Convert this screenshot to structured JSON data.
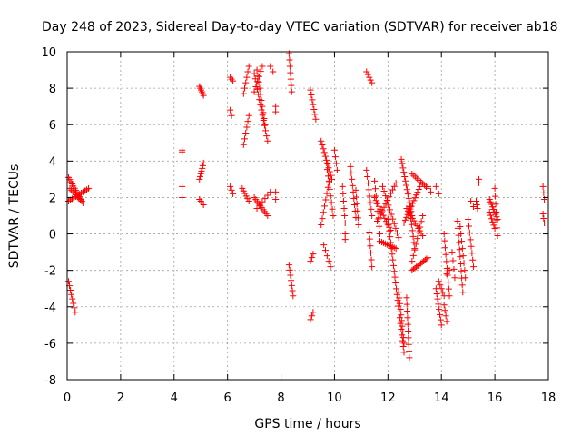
{
  "chart_data": {
    "type": "scatter",
    "title": "Day 248 of 2023, Sidereal Day-to-day VTEC variation (SDTVAR) for receiver ab18",
    "xlabel": "GPS time / hours",
    "ylabel": "SDTVAR / TECUs",
    "xlim": [
      0,
      18
    ],
    "ylim": [
      -8,
      10
    ],
    "xticks": [
      0,
      2,
      4,
      6,
      8,
      10,
      12,
      14,
      16,
      18
    ],
    "yticks": [
      -8,
      -6,
      -4,
      -2,
      0,
      2,
      4,
      6,
      8,
      10
    ],
    "grid": true,
    "marker": "+",
    "color": "#ff0000",
    "series": [
      {
        "name": "SDTVAR",
        "segments": [
          {
            "x0": 0.05,
            "y0": 3.1,
            "x1": 0.55,
            "y1": 1.8,
            "n": 12
          },
          {
            "x0": 0.05,
            "y0": 1.8,
            "x1": 0.8,
            "y1": 2.5,
            "n": 12
          },
          {
            "x0": 0.1,
            "y0": 2.5,
            "x1": 0.6,
            "y1": 1.7,
            "n": 10
          },
          {
            "x0": 0.05,
            "y0": -2.6,
            "x1": 0.3,
            "y1": -4.3,
            "n": 8
          },
          {
            "x0": 4.3,
            "y0": 4.6,
            "x1": 4.3,
            "y1": 4.5,
            "n": 2
          },
          {
            "x0": 4.3,
            "y0": 2.6,
            "x1": 4.3,
            "y1": 2.0,
            "n": 2
          },
          {
            "x0": 4.95,
            "y0": 8.1,
            "x1": 5.1,
            "y1": 7.6,
            "n": 6
          },
          {
            "x0": 4.95,
            "y0": 3.0,
            "x1": 5.1,
            "y1": 3.9,
            "n": 7
          },
          {
            "x0": 4.95,
            "y0": 1.9,
            "x1": 5.1,
            "y1": 1.6,
            "n": 4
          },
          {
            "x0": 6.1,
            "y0": 8.6,
            "x1": 6.2,
            "y1": 8.4,
            "n": 3
          },
          {
            "x0": 6.1,
            "y0": 6.8,
            "x1": 6.15,
            "y1": 6.5,
            "n": 2
          },
          {
            "x0": 6.1,
            "y0": 2.6,
            "x1": 6.2,
            "y1": 2.2,
            "n": 3
          },
          {
            "x0": 6.6,
            "y0": 4.9,
            "x1": 6.8,
            "y1": 6.5,
            "n": 6
          },
          {
            "x0": 6.6,
            "y0": 7.7,
            "x1": 6.8,
            "y1": 9.2,
            "n": 6
          },
          {
            "x0": 6.55,
            "y0": 2.5,
            "x1": 6.8,
            "y1": 1.8,
            "n": 6
          },
          {
            "x0": 7.0,
            "y0": 8.8,
            "x1": 7.5,
            "y1": 5.1,
            "n": 14
          },
          {
            "x0": 7.1,
            "y0": 9.0,
            "x1": 7.4,
            "y1": 6.0,
            "n": 10
          },
          {
            "x0": 7.0,
            "y0": 7.8,
            "x1": 7.3,
            "y1": 9.2,
            "n": 6
          },
          {
            "x0": 7.0,
            "y0": 2.0,
            "x1": 7.5,
            "y1": 1.0,
            "n": 10
          },
          {
            "x0": 7.1,
            "y0": 1.4,
            "x1": 7.6,
            "y1": 2.3,
            "n": 6
          },
          {
            "x0": 7.6,
            "y0": 9.2,
            "x1": 7.7,
            "y1": 8.9,
            "n": 2
          },
          {
            "x0": 7.8,
            "y0": 7.0,
            "x1": 7.8,
            "y1": 6.7,
            "n": 2
          },
          {
            "x0": 7.8,
            "y0": 2.3,
            "x1": 7.8,
            "y1": 1.9,
            "n": 2
          },
          {
            "x0": 8.3,
            "y0": 9.9,
            "x1": 8.4,
            "y1": 7.8,
            "n": 7
          },
          {
            "x0": 8.3,
            "y0": -1.7,
            "x1": 8.45,
            "y1": -3.4,
            "n": 7
          },
          {
            "x0": 9.1,
            "y0": 7.9,
            "x1": 9.3,
            "y1": 6.3,
            "n": 7
          },
          {
            "x0": 9.1,
            "y0": -1.5,
            "x1": 9.2,
            "y1": -1.1,
            "n": 3
          },
          {
            "x0": 9.1,
            "y0": -4.7,
            "x1": 9.2,
            "y1": -4.3,
            "n": 3
          },
          {
            "x0": 9.5,
            "y0": 5.1,
            "x1": 9.9,
            "y1": 3.0,
            "n": 11
          },
          {
            "x0": 9.5,
            "y0": 0.5,
            "x1": 9.8,
            "y1": 2.9,
            "n": 8
          },
          {
            "x0": 9.6,
            "y0": -0.6,
            "x1": 9.85,
            "y1": -1.8,
            "n": 5
          },
          {
            "x0": 9.7,
            "y0": 3.9,
            "x1": 9.95,
            "y1": 1.0,
            "n": 9
          },
          {
            "x0": 10.0,
            "y0": 4.6,
            "x1": 10.1,
            "y1": 3.5,
            "n": 4
          },
          {
            "x0": 10.3,
            "y0": 2.6,
            "x1": 10.4,
            "y1": 0.6,
            "n": 6
          },
          {
            "x0": 10.4,
            "y0": 0.0,
            "x1": 10.4,
            "y1": -0.3,
            "n": 2
          },
          {
            "x0": 10.6,
            "y0": 3.7,
            "x1": 10.8,
            "y1": 0.9,
            "n": 9
          },
          {
            "x0": 10.8,
            "y0": 2.4,
            "x1": 10.9,
            "y1": 0.5,
            "n": 6
          },
          {
            "x0": 11.2,
            "y0": 8.9,
            "x1": 11.4,
            "y1": 8.3,
            "n": 5
          },
          {
            "x0": 11.2,
            "y0": 3.5,
            "x1": 11.4,
            "y1": 1.0,
            "n": 8
          },
          {
            "x0": 11.3,
            "y0": 0.1,
            "x1": 11.4,
            "y1": -1.8,
            "n": 6
          },
          {
            "x0": 11.5,
            "y0": 2.9,
            "x1": 11.7,
            "y1": 0.0,
            "n": 8
          },
          {
            "x0": 11.5,
            "y0": 2.0,
            "x1": 12.1,
            "y1": 0.2,
            "n": 12
          },
          {
            "x0": 11.6,
            "y0": 0.7,
            "x1": 12.3,
            "y1": 2.8,
            "n": 12
          },
          {
            "x0": 11.8,
            "y0": 2.6,
            "x1": 12.4,
            "y1": -0.2,
            "n": 12
          },
          {
            "x0": 11.7,
            "y0": -0.4,
            "x1": 12.3,
            "y1": -0.8,
            "n": 10
          },
          {
            "x0": 12.0,
            "y0": 0.8,
            "x1": 12.6,
            "y1": -6.5,
            "n": 24
          },
          {
            "x0": 12.4,
            "y0": -3.2,
            "x1": 12.6,
            "y1": -6.0,
            "n": 10
          },
          {
            "x0": 12.5,
            "y0": 4.1,
            "x1": 12.9,
            "y1": 1.0,
            "n": 14
          },
          {
            "x0": 12.6,
            "y0": 0.6,
            "x1": 13.2,
            "y1": 2.6,
            "n": 14
          },
          {
            "x0": 12.7,
            "y0": 1.4,
            "x1": 13.3,
            "y1": -0.1,
            "n": 12
          },
          {
            "x0": 12.9,
            "y0": 3.3,
            "x1": 13.5,
            "y1": 2.5,
            "n": 10
          },
          {
            "x0": 12.8,
            "y0": 1.5,
            "x1": 13.0,
            "y1": -0.8,
            "n": 8
          },
          {
            "x0": 12.9,
            "y0": -2.0,
            "x1": 13.5,
            "y1": -1.3,
            "n": 12
          },
          {
            "x0": 12.9,
            "y0": -1.5,
            "x1": 13.3,
            "y1": 1.0,
            "n": 9
          },
          {
            "x0": 12.7,
            "y0": -3.5,
            "x1": 12.8,
            "y1": -6.8,
            "n": 10
          },
          {
            "x0": 13.5,
            "y0": 2.6,
            "x1": 13.6,
            "y1": 2.3,
            "n": 2
          },
          {
            "x0": 13.8,
            "y0": 2.6,
            "x1": 13.9,
            "y1": 2.2,
            "n": 2
          },
          {
            "x0": 13.8,
            "y0": -3.0,
            "x1": 14.0,
            "y1": -5.0,
            "n": 8
          },
          {
            "x0": 13.9,
            "y0": -2.6,
            "x1": 14.1,
            "y1": -3.4,
            "n": 5
          },
          {
            "x0": 14.1,
            "y0": -3.9,
            "x1": 14.2,
            "y1": -4.8,
            "n": 4
          },
          {
            "x0": 14.1,
            "y0": 0.0,
            "x1": 14.3,
            "y1": -3.4,
            "n": 10
          },
          {
            "x0": 14.2,
            "y0": -2.2,
            "x1": 14.3,
            "y1": -2.0,
            "n": 2
          },
          {
            "x0": 14.4,
            "y0": -1.0,
            "x1": 14.5,
            "y1": -2.4,
            "n": 4
          },
          {
            "x0": 14.6,
            "y0": 0.7,
            "x1": 14.8,
            "y1": -3.2,
            "n": 11
          },
          {
            "x0": 14.7,
            "y0": 0.4,
            "x1": 14.9,
            "y1": -2.4,
            "n": 8
          },
          {
            "x0": 15.0,
            "y0": 0.8,
            "x1": 15.2,
            "y1": -1.8,
            "n": 8
          },
          {
            "x0": 15.1,
            "y0": 1.8,
            "x1": 15.2,
            "y1": 1.5,
            "n": 2
          },
          {
            "x0": 15.3,
            "y0": 1.8,
            "x1": 15.35,
            "y1": 1.4,
            "n": 3
          },
          {
            "x0": 15.4,
            "y0": 3.0,
            "x1": 15.4,
            "y1": 2.8,
            "n": 2
          },
          {
            "x0": 15.8,
            "y0": 1.9,
            "x1": 16.1,
            "y1": 0.8,
            "n": 9
          },
          {
            "x0": 15.8,
            "y0": 1.2,
            "x1": 16.0,
            "y1": 0.3,
            "n": 6
          },
          {
            "x0": 16.0,
            "y0": 2.5,
            "x1": 16.1,
            "y1": -0.1,
            "n": 7
          },
          {
            "x0": 17.8,
            "y0": 2.6,
            "x1": 17.85,
            "y1": 1.9,
            "n": 3
          },
          {
            "x0": 17.8,
            "y0": 1.1,
            "x1": 17.85,
            "y1": 0.6,
            "n": 3
          }
        ]
      }
    ]
  }
}
